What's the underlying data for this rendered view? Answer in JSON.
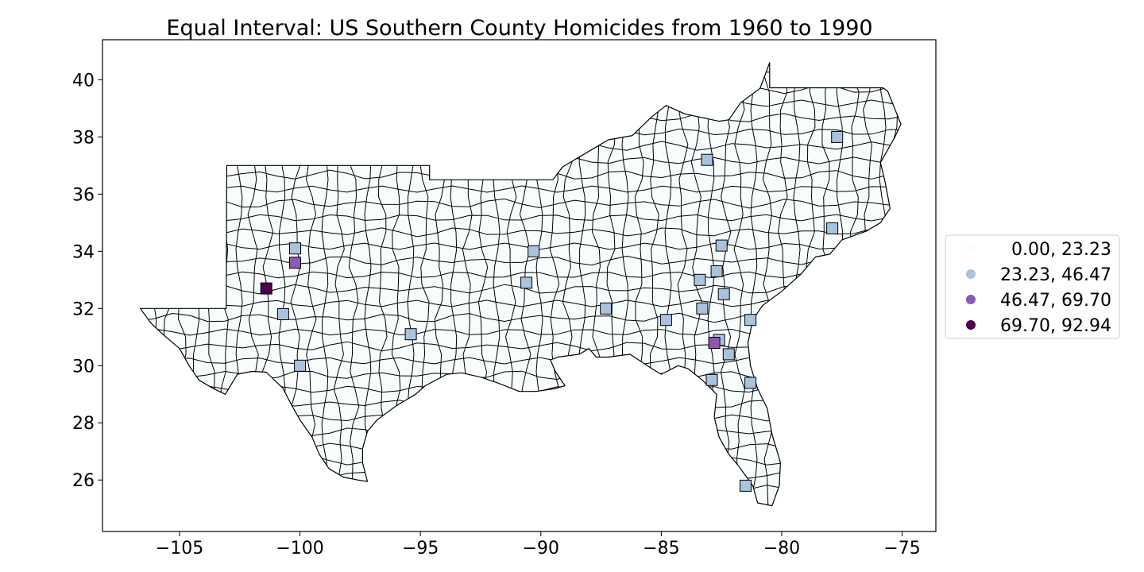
{
  "chart_data": {
    "type": "choropleth",
    "title": "Equal Interval: US Southern County Homicides from 1960 to 1990",
    "xlabel": "",
    "ylabel": "",
    "xlim": [
      -108.2,
      -73.6
    ],
    "ylim": [
      24.2,
      41.4
    ],
    "xticks": [
      -105,
      -100,
      -95,
      -90,
      -85,
      -80,
      -75
    ],
    "xtick_labels": [
      "−105",
      "−100",
      "−95",
      "−90",
      "−85",
      "−80",
      "−75"
    ],
    "yticks": [
      26,
      28,
      30,
      32,
      34,
      36,
      38,
      40
    ],
    "ytick_labels": [
      "26",
      "28",
      "30",
      "32",
      "34",
      "36",
      "38",
      "40"
    ],
    "grid": false,
    "legend": {
      "placement": "center-right",
      "entries": [
        {
          "label": "0.00, 23.23",
          "color": "#f7fcfd"
        },
        {
          "label": "23.23, 46.47",
          "color": "#a9c2de"
        },
        {
          "label": "46.47, 69.70",
          "color": "#8c59b0"
        },
        {
          "label": "69.70, 92.94",
          "color": "#4d004b"
        }
      ]
    },
    "base_color": "#f7fcfd",
    "highlighted_counties": [
      {
        "lon": -100.2,
        "lat": 34.1,
        "class": 1
      },
      {
        "lon": -100.2,
        "lat": 33.6,
        "class": 2
      },
      {
        "lon": -101.4,
        "lat": 32.7,
        "class": 3
      },
      {
        "lon": -100.7,
        "lat": 31.8,
        "class": 1
      },
      {
        "lon": -100.0,
        "lat": 30.0,
        "class": 1
      },
      {
        "lon": -95.4,
        "lat": 31.1,
        "class": 1
      },
      {
        "lon": -90.3,
        "lat": 34.0,
        "class": 1
      },
      {
        "lon": -90.6,
        "lat": 32.9,
        "class": 1
      },
      {
        "lon": -87.3,
        "lat": 32.0,
        "class": 1
      },
      {
        "lon": -83.1,
        "lat": 37.2,
        "class": 1
      },
      {
        "lon": -77.7,
        "lat": 38.0,
        "class": 1
      },
      {
        "lon": -77.9,
        "lat": 34.8,
        "class": 1
      },
      {
        "lon": -82.5,
        "lat": 34.2,
        "class": 1
      },
      {
        "lon": -82.7,
        "lat": 33.3,
        "class": 1
      },
      {
        "lon": -83.4,
        "lat": 33.0,
        "class": 1
      },
      {
        "lon": -82.4,
        "lat": 32.5,
        "class": 1
      },
      {
        "lon": -83.3,
        "lat": 32.0,
        "class": 1
      },
      {
        "lon": -81.3,
        "lat": 31.6,
        "class": 1
      },
      {
        "lon": -82.6,
        "lat": 30.9,
        "class": 1
      },
      {
        "lon": -82.2,
        "lat": 30.4,
        "class": 1
      },
      {
        "lon": -82.8,
        "lat": 30.8,
        "class": 2
      },
      {
        "lon": -81.3,
        "lat": 29.4,
        "class": 1
      },
      {
        "lon": -82.9,
        "lat": 29.5,
        "class": 1
      },
      {
        "lon": -84.8,
        "lat": 31.6,
        "class": 1
      },
      {
        "lon": -81.5,
        "lat": 25.8,
        "class": 1
      }
    ]
  }
}
